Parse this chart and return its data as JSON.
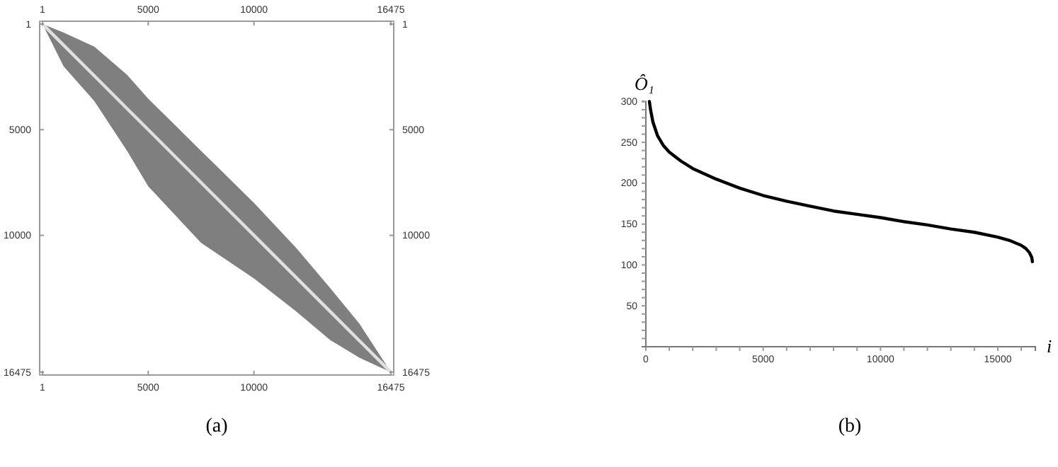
{
  "chart_data": [
    {
      "type": "line",
      "x": [
        1,
        1000,
        2455,
        4000,
        5000,
        7500,
        10000,
        12000,
        13600,
        15000,
        16475
      ],
      "series": [
        {
          "color": "#e0e0e0",
          "values": [
            1,
            1000,
            2455,
            4000,
            5000,
            7500,
            10000,
            12000,
            13600,
            15000,
            16475
          ],
          "lower": [
            1,
            2000,
            3650,
            6000,
            7677,
            10360,
            12040,
            13600,
            14950,
            15800,
            16475
          ],
          "upper": [
            1,
            400,
            1074,
            2400,
            3536,
            6000,
            8460,
            10600,
            12490,
            14200,
            16475
          ]
        }
      ],
      "xlim": [
        1,
        16475
      ],
      "xticks": [
        1,
        5000,
        10000,
        16475
      ],
      "x2lim": [
        1,
        16475
      ],
      "x2ticks": [
        1,
        5000,
        10000,
        16475
      ],
      "ylim": [
        16475,
        1
      ],
      "yticks": [
        1,
        5000,
        10000,
        16475
      ],
      "y2lim": [
        16475,
        1
      ],
      "y2ticks": [
        1,
        5000,
        10000,
        16475
      ],
      "annotations": [
        "(a)"
      ]
    },
    {
      "type": "line",
      "xlabel": "i",
      "ylabel": "Ô₁",
      "x": [
        150,
        200,
        300,
        500,
        750,
        1000,
        1500,
        2000,
        3000,
        4000,
        5000,
        6000,
        7000,
        8000,
        9000,
        10000,
        11000,
        12000,
        13000,
        14000,
        15000,
        15500,
        16000,
        16200,
        16350,
        16450,
        16475
      ],
      "series": [
        {
          "color": "#000000",
          "values": [
            300,
            290,
            275,
            258,
            246,
            238,
            227,
            218,
            205,
            194,
            185,
            178,
            172,
            166,
            162,
            158,
            153,
            149,
            144,
            140,
            134,
            130,
            124,
            120,
            115,
            109,
            104
          ]
        }
      ],
      "xlim": [
        0,
        16600
      ],
      "xticks": [
        0,
        {
          "value": 1000,
          "label": null
        },
        {
          "value": 2000,
          "label": null
        },
        {
          "value": 3000,
          "label": null
        },
        {
          "value": 4000,
          "label": null
        },
        5000,
        {
          "value": 6000,
          "label": null
        },
        {
          "value": 7000,
          "label": null
        },
        {
          "value": 8000,
          "label": null
        },
        {
          "value": 9000,
          "label": null
        },
        10000,
        {
          "value": 11000,
          "label": null
        },
        {
          "value": 12000,
          "label": null
        },
        {
          "value": 13000,
          "label": null
        },
        {
          "value": 14000,
          "label": null
        },
        15000,
        {
          "value": 16000,
          "label": null
        }
      ],
      "ylim": [
        0,
        300
      ],
      "yticks": [
        {
          "value": 10,
          "label": null
        },
        {
          "value": 20,
          "label": null
        },
        {
          "value": 30,
          "label": null
        },
        {
          "value": 40,
          "label": null
        },
        50,
        {
          "value": 60,
          "label": null
        },
        {
          "value": 70,
          "label": null
        },
        {
          "value": 80,
          "label": null
        },
        {
          "value": 90,
          "label": null
        },
        100,
        {
          "value": 110,
          "label": null
        },
        {
          "value": 120,
          "label": null
        },
        {
          "value": 130,
          "label": null
        },
        {
          "value": 140,
          "label": null
        },
        150,
        {
          "value": 160,
          "label": null
        },
        {
          "value": 170,
          "label": null
        },
        {
          "value": 180,
          "label": null
        },
        {
          "value": 190,
          "label": null
        },
        200,
        {
          "value": 210,
          "label": null
        },
        {
          "value": 220,
          "label": null
        },
        {
          "value": 230,
          "label": null
        },
        {
          "value": 240,
          "label": null
        },
        250,
        {
          "value": 260,
          "label": null
        },
        {
          "value": 270,
          "label": null
        },
        {
          "value": 280,
          "label": null
        },
        {
          "value": 290,
          "label": null
        },
        300
      ],
      "annotations": [
        "(b)"
      ]
    }
  ]
}
